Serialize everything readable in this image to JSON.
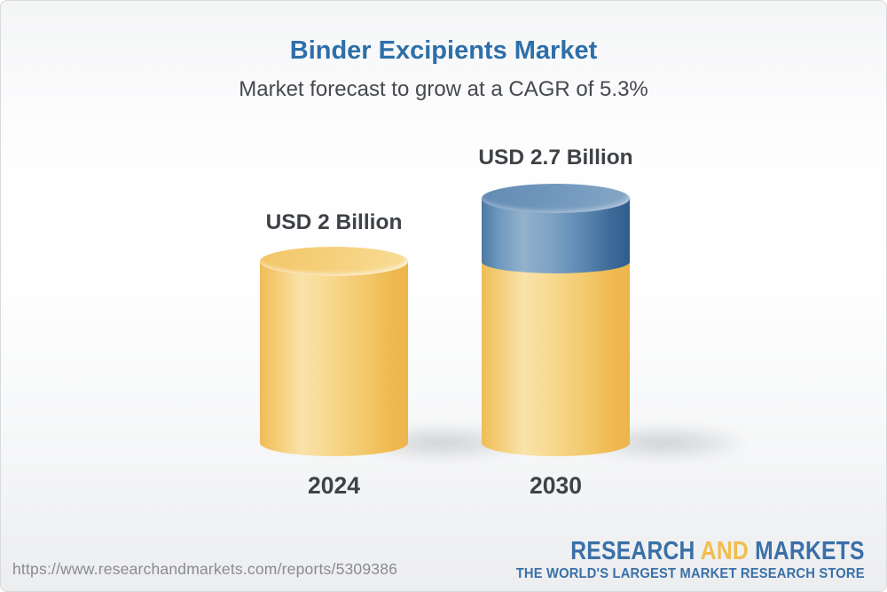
{
  "header": {
    "title": "Binder Excipients Market",
    "subtitle": "Market forecast to grow at a CAGR of 5.3%",
    "title_color": "#2D6FA9"
  },
  "chart_data": {
    "type": "bar",
    "variant": "3d-cylinder",
    "title": "Binder Excipients Market",
    "subtitle": "Market forecast to grow at a CAGR of 5.3%",
    "unit": "USD Billion",
    "cagr_pct": 5.3,
    "categories": [
      "2024",
      "2030"
    ],
    "values": [
      2.0,
      2.7
    ],
    "series": [
      {
        "name": "2024",
        "value": 2.0,
        "label": "USD 2 Billion",
        "segments": [
          {
            "color_key": "gold",
            "value": 2.0
          }
        ]
      },
      {
        "name": "2030",
        "value": 2.7,
        "label": "USD 2.7 Billion",
        "segments": [
          {
            "color_key": "gold",
            "value": 2.0
          },
          {
            "color_key": "blue",
            "value": 0.7
          }
        ]
      }
    ],
    "ylim": [
      0,
      2.7
    ],
    "grid": false,
    "legend": "none",
    "colors": {
      "gold": "#F2C366",
      "blue": "#5A87B0"
    }
  },
  "footer": {
    "url": "https://www.researchandmarkets.com/reports/5309386",
    "logo": {
      "word1": "RESEARCH",
      "word2": "AND",
      "word3": "MARKETS",
      "tagline": "THE WORLD'S LARGEST MARKET RESEARCH STORE",
      "blue": "#3A70A8",
      "yellow": "#F0BE4D"
    }
  }
}
